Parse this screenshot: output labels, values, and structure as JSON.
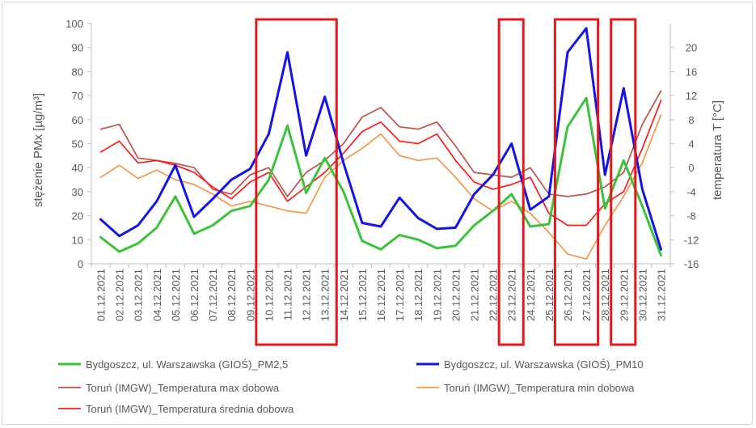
{
  "chart_data": {
    "type": "line",
    "dates": [
      "01.12.2021",
      "02.12.2021",
      "03.12.2021",
      "04.12.2021",
      "05.12.2021",
      "06.12.2021",
      "07.12.2021",
      "08.12.2021",
      "09.12.2021",
      "10.12.2021",
      "11.12.2021",
      "12.12.2021",
      "13.12.2021",
      "14.12.2021",
      "15.12.2021",
      "16.12.2021",
      "17.12.2021",
      "18.12.2021",
      "19.12.2021",
      "20.12.2021",
      "21.12.2021",
      "22.12.2021",
      "23.12.2021",
      "24.12.2021",
      "25.12.2021",
      "26.12.2021",
      "27.12.2021",
      "28.12.2021",
      "29.12.2021",
      "30.12.2021",
      "31.12.2021"
    ],
    "y_left": {
      "label": "stężenie PMx [µg/m³]",
      "min": 0,
      "max": 100,
      "ticks": [
        0,
        10,
        20,
        30,
        40,
        50,
        60,
        70,
        80,
        90,
        100
      ]
    },
    "y_right": {
      "label": "temperatura T [°C]",
      "min": -16,
      "max": 24,
      "ticks": [
        -16,
        -12,
        -8,
        -4,
        0,
        4,
        8,
        12,
        16,
        20
      ]
    },
    "series": [
      {
        "name": "Bydgoszcz, ul. Warszawska (GIOŚ)_PM2,5",
        "axis": "left",
        "color": "#3cc33c",
        "width": 3,
        "values": [
          11,
          5,
          8.5,
          15,
          28,
          12.5,
          16,
          22,
          24,
          35,
          57.5,
          29.5,
          44,
          30,
          9.5,
          6,
          12,
          10,
          6.5,
          7.5,
          16,
          22,
          29,
          15.5,
          16.5,
          57,
          69,
          23,
          43,
          24,
          3.5
        ]
      },
      {
        "name": "Bydgoszcz, ul. Warszawska (GIOŚ)_PM10",
        "axis": "left",
        "color": "#1414e6",
        "width": 3,
        "values": [
          18.5,
          11.5,
          16,
          26,
          41,
          19.5,
          27,
          35,
          39.5,
          54,
          88,
          45,
          69.5,
          42,
          17,
          15.5,
          27.5,
          19,
          14.5,
          15,
          29,
          37,
          50,
          22.5,
          28,
          88,
          98,
          37,
          73,
          31,
          6
        ]
      },
      {
        "name": "Toruń (IMGW)_Temperatura max dobowa",
        "axis": "right",
        "color": "#c0504d",
        "width": 1.7,
        "values": [
          6.4,
          7.2,
          1.6,
          1.2,
          0.7,
          0,
          -3.6,
          -4.4,
          -1.2,
          0,
          -4.8,
          -0.8,
          1.2,
          4,
          8.4,
          10,
          6.8,
          6.4,
          7.6,
          3.6,
          -0.8,
          -1.2,
          -1.6,
          0,
          -4.4,
          -4.8,
          -4.4,
          -3.2,
          -0.8,
          7.2,
          12.8
        ]
      },
      {
        "name": "Toruń (IMGW)_Temperatura min dobowa",
        "axis": "right",
        "color": "#f79646",
        "width": 1.7,
        "values": [
          -1.6,
          0.4,
          -1.8,
          -0.4,
          -2,
          -2.8,
          -4.4,
          -6.4,
          -5.6,
          -6.4,
          -7.2,
          -7.6,
          -1.6,
          1.2,
          3.2,
          5.6,
          2,
          1.2,
          1.6,
          -1.6,
          -5.2,
          -7.2,
          -5.6,
          -7.6,
          -10.8,
          -14.4,
          -15.2,
          -9.6,
          -4.8,
          0.8,
          8.8
        ]
      },
      {
        "name": "Toruń (IMGW)_Temperatura średnia dobowa",
        "axis": "right",
        "color": "#ff1a1a",
        "width": 1.7,
        "values": [
          2.6,
          4.4,
          0.8,
          1.2,
          0.4,
          -0.8,
          -3.2,
          -5.2,
          -2.4,
          -0.8,
          -5.6,
          -3.2,
          -0.8,
          2.4,
          6,
          7.6,
          4.4,
          4,
          5.6,
          1.2,
          -2.4,
          -3.6,
          -2.8,
          -1.6,
          -7.6,
          -9.6,
          -9.6,
          -6,
          -4,
          3.2,
          11.2
        ]
      }
    ],
    "highlight_boxes": [
      {
        "from": "10.12.2021",
        "to": "13.12.2021",
        "color": "#e31a1c"
      },
      {
        "from": "23.12.2021",
        "to": "23.12.2021",
        "color": "#e31a1c"
      },
      {
        "from": "26.12.2021",
        "to": "27.12.2021",
        "color": "#e31a1c"
      },
      {
        "from": "29.12.2021",
        "to": "29.12.2021",
        "color": "#e31a1c"
      }
    ],
    "grid": false,
    "legend_position": "bottom"
  }
}
